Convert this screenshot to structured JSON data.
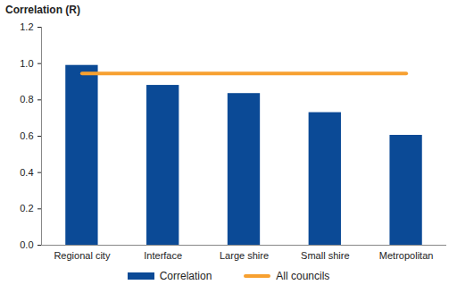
{
  "chart_data": {
    "type": "bar",
    "y_label": "Correlation (R)",
    "categories": [
      "Regional city",
      "Interface",
      "Large shire",
      "Small shire",
      "Metropolitan"
    ],
    "series": [
      {
        "name": "Correlation",
        "type": "bar",
        "color": "#0b4a96",
        "values": [
          0.99,
          0.88,
          0.835,
          0.73,
          0.605
        ]
      },
      {
        "name": "All councils",
        "type": "line",
        "color": "#f7a030",
        "values": [
          0.945,
          0.945,
          0.945,
          0.945,
          0.945
        ]
      }
    ],
    "ylim": [
      0,
      1.2
    ],
    "yticks": [
      {
        "value": 0,
        "label": "0.0"
      },
      {
        "value": 0.2,
        "label": "0.2"
      },
      {
        "value": 0.4,
        "label": "0.4"
      },
      {
        "value": 0.6,
        "label": "0.6"
      },
      {
        "value": 0.8,
        "label": "0.8"
      },
      {
        "value": 1,
        "label": "1.0"
      },
      {
        "value": 1.2,
        "label": "1.2"
      }
    ],
    "grid": false,
    "legend": "bottom"
  }
}
